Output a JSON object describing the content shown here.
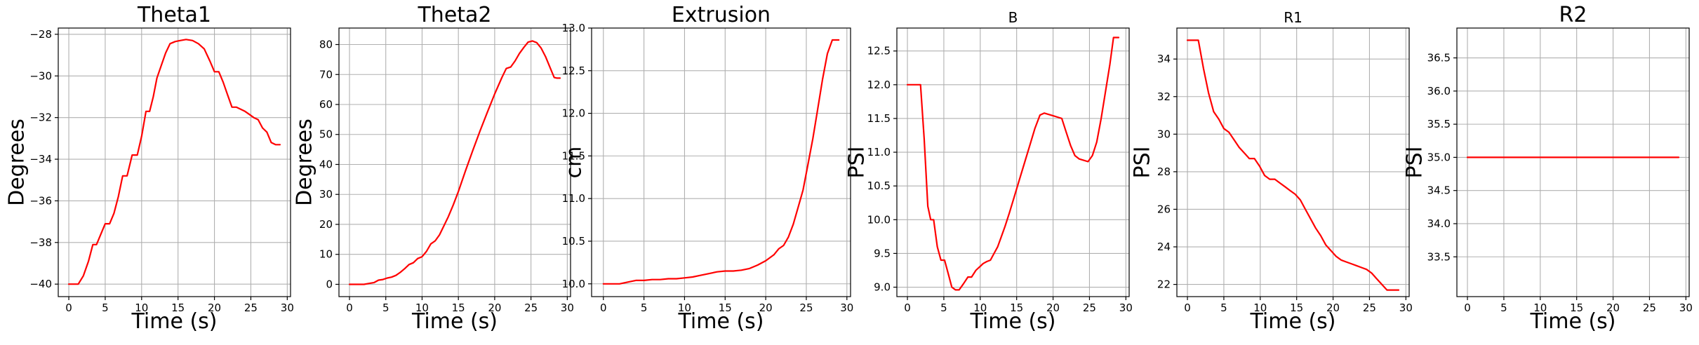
{
  "chart_data": [
    {
      "type": "line",
      "title": "Theta1",
      "title_size": "big",
      "xlabel": "Time (s)",
      "ylabel": "Degrees",
      "xlim": [
        -1.45,
        30.45
      ],
      "ylim": [
        -40.6,
        -27.7
      ],
      "xticks": [
        0,
        5,
        10,
        15,
        20,
        25,
        30
      ],
      "yticks": [
        -40,
        -38,
        -36,
        -34,
        -32,
        -30,
        -28
      ],
      "grid": true,
      "color": "#ff0000",
      "series": [
        {
          "x": [
            0,
            0.7,
            1.3,
            2,
            2.7,
            3.3,
            3.8,
            4.4,
            5,
            5.6,
            6.2,
            6.8,
            7.4,
            8,
            8.7,
            9.4,
            10,
            10.6,
            11.1,
            11.6,
            12.1,
            12.7,
            13.3,
            13.9,
            14.6,
            15.3,
            16.1,
            17,
            17.8,
            18.6,
            19.4,
            20,
            20.6,
            21.2,
            21.8,
            22.4,
            23,
            23.6,
            24.2,
            24.8,
            25.4,
            26,
            26.6,
            27.2,
            27.8,
            28.4,
            29
          ],
          "y": [
            -40,
            -40,
            -40,
            -39.6,
            -38.9,
            -38.1,
            -38.1,
            -37.6,
            -37.1,
            -37.1,
            -36.6,
            -35.8,
            -34.8,
            -34.8,
            -33.8,
            -33.8,
            -32.9,
            -31.7,
            -31.7,
            -31.0,
            -30.1,
            -29.5,
            -28.9,
            -28.45,
            -28.35,
            -28.3,
            -28.25,
            -28.3,
            -28.45,
            -28.7,
            -29.3,
            -29.8,
            -29.8,
            -30.3,
            -30.9,
            -31.5,
            -31.5,
            -31.6,
            -31.7,
            -31.85,
            -32.0,
            -32.1,
            -32.5,
            -32.7,
            -33.2,
            -33.3,
            -33.3
          ]
        }
      ]
    },
    {
      "type": "line",
      "title": "Theta2",
      "title_size": "big",
      "xlabel": "Time (s)",
      "ylabel": "Degrees",
      "xlim": [
        -1.45,
        30.45
      ],
      "ylim": [
        -4.1,
        85.5
      ],
      "xticks": [
        0,
        5,
        10,
        15,
        20,
        25,
        30
      ],
      "yticks": [
        0,
        10,
        20,
        30,
        40,
        50,
        60,
        70,
        80
      ],
      "grid": true,
      "color": "#ff0000",
      "series": [
        {
          "x": [
            0,
            1,
            2,
            2.7,
            3.4,
            4,
            4.6,
            5.2,
            5.8,
            6.4,
            7,
            7.6,
            8.2,
            8.8,
            9.4,
            10,
            10.6,
            11.2,
            11.8,
            12.4,
            13,
            13.6,
            14.3,
            15,
            16,
            17,
            18,
            19,
            20,
            21,
            21.6,
            22.2,
            22.8,
            23.4,
            24,
            24.6,
            25.2,
            25.8,
            26.4,
            27,
            27.6,
            28.2,
            28.6,
            29
          ],
          "y": [
            0,
            0,
            0,
            0.3,
            0.6,
            1.4,
            1.6,
            2.1,
            2.4,
            3.0,
            4.0,
            5.2,
            6.6,
            7.2,
            8.6,
            9.2,
            11,
            13.5,
            14.5,
            16.5,
            19.5,
            22.5,
            26.5,
            31,
            38,
            44.8,
            51.3,
            57.5,
            63.5,
            69,
            72,
            72.5,
            74.5,
            77,
            79,
            80.8,
            81.2,
            80.6,
            78.8,
            76,
            72.5,
            69,
            68.8,
            68.8
          ]
        }
      ]
    },
    {
      "type": "line",
      "title": "Extrusion",
      "title_size": "big",
      "xlabel": "Time (s)",
      "ylabel": "cm",
      "xlim": [
        -1.45,
        30.45
      ],
      "ylim": [
        9.85,
        13.0
      ],
      "xticks": [
        0,
        5,
        10,
        15,
        20,
        25,
        30
      ],
      "yticks": [
        10.0,
        10.5,
        11.0,
        11.5,
        12.0,
        12.5,
        13.0
      ],
      "ytick_labels": [
        "10.0",
        "10.5",
        "11.0",
        "11.5",
        "12.0",
        "12.5",
        "13.0"
      ],
      "grid": true,
      "color": "#ff0000",
      "series": [
        {
          "x": [
            0,
            1,
            2,
            3,
            4,
            5,
            6,
            7,
            8,
            9,
            10,
            11,
            12,
            13,
            14,
            15,
            16,
            17,
            18,
            19,
            20,
            21,
            21.6,
            22.2,
            22.8,
            23.4,
            24,
            24.6,
            25.2,
            25.8,
            26.4,
            27,
            27.6,
            28.2,
            28.5,
            29
          ],
          "y": [
            10,
            10.0,
            10.0,
            10.02,
            10.04,
            10.04,
            10.05,
            10.05,
            10.06,
            10.06,
            10.07,
            10.08,
            10.1,
            10.12,
            10.14,
            10.15,
            10.15,
            10.16,
            10.18,
            10.22,
            10.27,
            10.34,
            10.41,
            10.45,
            10.55,
            10.7,
            10.9,
            11.1,
            11.4,
            11.7,
            12.05,
            12.4,
            12.7,
            12.86,
            12.86,
            12.86
          ]
        }
      ]
    },
    {
      "type": "line",
      "title": "B",
      "title_size": "small",
      "xlabel": "Time (s)",
      "ylabel": "PSI",
      "xlim": [
        -1.45,
        30.45
      ],
      "ylim": [
        8.86,
        12.84
      ],
      "xticks": [
        0,
        5,
        10,
        15,
        20,
        25,
        30
      ],
      "yticks": [
        9.0,
        9.5,
        10.0,
        10.5,
        11.0,
        11.5,
        12.0,
        12.5
      ],
      "ytick_labels": [
        "9.0",
        "9.5",
        "10.0",
        "10.5",
        "11.0",
        "11.5",
        "12.0",
        "12.5"
      ],
      "grid": true,
      "color": "#ff0000",
      "series": [
        {
          "x": [
            0,
            0.7,
            1.3,
            1.8,
            2.3,
            2.8,
            3.2,
            3.6,
            4.1,
            4.6,
            5.1,
            5.6,
            6.1,
            6.6,
            7.1,
            7.7,
            8.3,
            8.8,
            9.4,
            9.9,
            10.4,
            10.9,
            11.4,
            11.9,
            12.4,
            12.9,
            13.4,
            14,
            14.7,
            15.4,
            16.1,
            16.8,
            17.5,
            18.2,
            18.8,
            19.4,
            20,
            20.6,
            21.2,
            21.8,
            22.4,
            23,
            23.6,
            24.2,
            24.8,
            25.4,
            26,
            26.6,
            27.2,
            27.8,
            28.3,
            28.7,
            29
          ],
          "y": [
            12,
            12,
            12,
            12,
            11.2,
            10.2,
            10.0,
            10.0,
            9.6,
            9.4,
            9.4,
            9.2,
            9.0,
            8.96,
            8.96,
            9.05,
            9.15,
            9.15,
            9.25,
            9.3,
            9.35,
            9.38,
            9.4,
            9.5,
            9.6,
            9.75,
            9.9,
            10.1,
            10.35,
            10.6,
            10.85,
            11.1,
            11.35,
            11.55,
            11.58,
            11.56,
            11.54,
            11.52,
            11.5,
            11.3,
            11.1,
            10.95,
            10.9,
            10.88,
            10.86,
            10.95,
            11.15,
            11.5,
            11.9,
            12.3,
            12.7,
            12.7,
            12.7
          ]
        }
      ]
    },
    {
      "type": "line",
      "title": "R1",
      "title_size": "small",
      "xlabel": "Time (s)",
      "ylabel": "PSI",
      "xlim": [
        -1.45,
        30.45
      ],
      "ylim": [
        21.35,
        35.65
      ],
      "xticks": [
        0,
        5,
        10,
        15,
        20,
        25,
        30
      ],
      "yticks": [
        22,
        24,
        26,
        28,
        30,
        32,
        34
      ],
      "grid": true,
      "color": "#ff0000",
      "series": [
        {
          "x": [
            0,
            0.8,
            1.5,
            2.2,
            2.9,
            3.6,
            4.3,
            5,
            5.7,
            6.4,
            7.1,
            7.8,
            8.5,
            9.2,
            9.9,
            10.6,
            11.3,
            12,
            12.7,
            13.4,
            14.1,
            14.8,
            15.5,
            16.2,
            16.9,
            17.6,
            18.3,
            19,
            19.7,
            20.4,
            21.1,
            21.8,
            22.5,
            23.2,
            23.9,
            24.6,
            25.3,
            26,
            26.7,
            27.4,
            28.1,
            28.6,
            29
          ],
          "y": [
            35,
            35,
            35,
            33.5,
            32.2,
            31.2,
            30.8,
            30.3,
            30.1,
            29.7,
            29.3,
            29.0,
            28.7,
            28.7,
            28.3,
            27.8,
            27.6,
            27.6,
            27.4,
            27.2,
            27.0,
            26.8,
            26.5,
            26.0,
            25.5,
            25.0,
            24.6,
            24.1,
            23.8,
            23.5,
            23.3,
            23.2,
            23.1,
            23.0,
            22.9,
            22.8,
            22.6,
            22.3,
            22.0,
            21.7,
            21.7,
            21.7,
            21.7
          ]
        }
      ]
    },
    {
      "type": "line",
      "title": "R2",
      "title_size": "big",
      "xlabel": "Time (s)",
      "ylabel": "PSI",
      "xlim": [
        -1.45,
        30.45
      ],
      "ylim": [
        32.9,
        36.95
      ],
      "xticks": [
        0,
        5,
        10,
        15,
        20,
        25,
        30
      ],
      "yticks": [
        33.5,
        34.0,
        34.5,
        35.0,
        35.5,
        36.0,
        36.5
      ],
      "ytick_labels": [
        "33.5",
        "34.0",
        "34.5",
        "35.0",
        "35.5",
        "36.0",
        "36.5"
      ],
      "grid": true,
      "color": "#ff0000",
      "series": [
        {
          "x": [
            0,
            29
          ],
          "y": [
            35,
            35
          ]
        }
      ]
    }
  ]
}
